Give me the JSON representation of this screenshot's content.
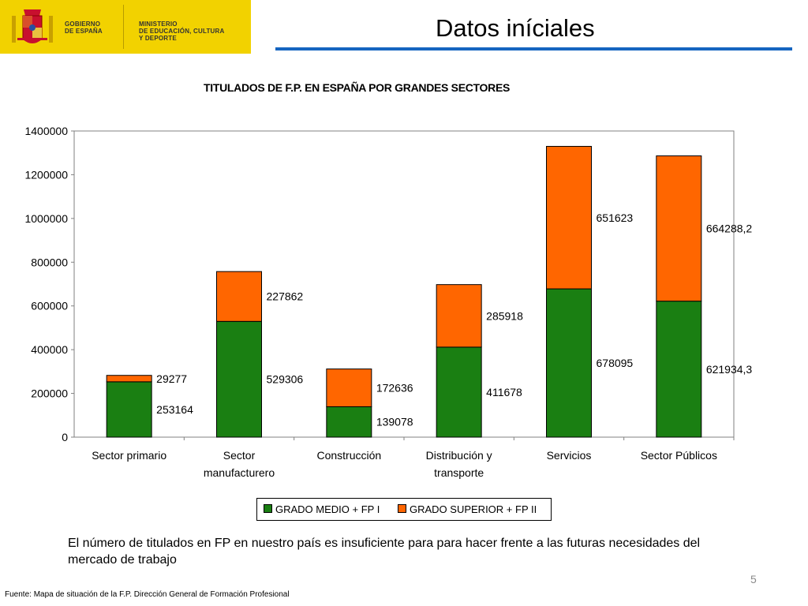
{
  "header": {
    "logo_government": "GOBIERNO\nDE ESPAÑA",
    "logo_ministry": "MINISTERIO\nDE EDUCACIÓN, CULTURA\nY DEPORTE",
    "page_title": "Datos iníciales",
    "colors": {
      "band": "#f2d200",
      "rule": "#1565c0"
    }
  },
  "chart_data": {
    "type": "bar",
    "stacked": true,
    "title": "TITULADOS DE F.P. EN ESPAÑA POR GRANDES SECTORES",
    "categories": [
      "Sector primario",
      "Sector manufacturero",
      "Construcción",
      "Distribución y transporte",
      "Servicios",
      "Sector Públicos"
    ],
    "series": [
      {
        "name": "GRADO MEDIO + FP I",
        "color": "#1a7f12",
        "values": [
          253164,
          529306,
          139078,
          411678,
          678095,
          621934.3
        ],
        "labels": [
          "253164",
          "529306",
          "139078",
          "411678",
          "678095",
          "621934,3"
        ]
      },
      {
        "name": "GRADO SUPERIOR + FP II",
        "color": "#ff6600",
        "values": [
          29277,
          227862,
          172636,
          285918,
          651623,
          664288.2
        ],
        "labels": [
          "29277",
          "227862",
          "172636",
          "285918",
          "651623",
          "664288,2"
        ]
      }
    ],
    "ylim": [
      0,
      1400000
    ],
    "yticks": [
      0,
      200000,
      400000,
      600000,
      800000,
      1000000,
      1200000,
      1400000
    ],
    "ytick_labels": [
      "0",
      "200000",
      "400000",
      "600000",
      "800000",
      "1000000",
      "1200000",
      "1400000"
    ],
    "grid": false,
    "legend": "bottom",
    "xlabel": "",
    "ylabel": ""
  },
  "body_text": "El número de titulados en FP en nuestro país es insuficiente para para hacer frente a las futuras necesidades del mercado de trabajo",
  "page_number": "5",
  "footer_source": "Fuente: Mapa de situación de la F.P. Dirección General de Formación Profesional"
}
